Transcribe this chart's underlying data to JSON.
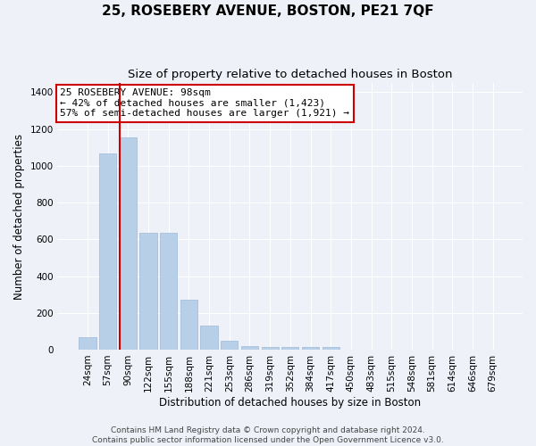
{
  "title": "25, ROSEBERY AVENUE, BOSTON, PE21 7QF",
  "subtitle": "Size of property relative to detached houses in Boston",
  "xlabel": "Distribution of detached houses by size in Boston",
  "ylabel": "Number of detached properties",
  "categories": [
    "24sqm",
    "57sqm",
    "90sqm",
    "122sqm",
    "155sqm",
    "188sqm",
    "221sqm",
    "253sqm",
    "286sqm",
    "319sqm",
    "352sqm",
    "384sqm",
    "417sqm",
    "450sqm",
    "483sqm",
    "515sqm",
    "548sqm",
    "581sqm",
    "614sqm",
    "646sqm",
    "679sqm"
  ],
  "values": [
    70,
    1065,
    1155,
    635,
    635,
    270,
    130,
    50,
    20,
    15,
    15,
    15,
    15,
    0,
    0,
    0,
    0,
    0,
    0,
    0,
    0
  ],
  "bar_color": "#b8cfe8",
  "bar_edge_color": "#9db8d8",
  "vline_color": "#cc0000",
  "vline_x_index": 2,
  "annotation_text": "25 ROSEBERY AVENUE: 98sqm\n← 42% of detached houses are smaller (1,423)\n57% of semi-detached houses are larger (1,921) →",
  "annotation_box_facecolor": "#ffffff",
  "annotation_box_edgecolor": "#cc0000",
  "ylim": [
    0,
    1450
  ],
  "yticks": [
    0,
    200,
    400,
    600,
    800,
    1000,
    1200,
    1400
  ],
  "footnote1": "Contains HM Land Registry data © Crown copyright and database right 2024.",
  "footnote2": "Contains public sector information licensed under the Open Government Licence v3.0.",
  "background_color": "#eef2f8",
  "grid_color": "#ffffff",
  "title_fontsize": 11,
  "subtitle_fontsize": 9.5,
  "axis_label_fontsize": 8.5,
  "tick_fontsize": 7.5,
  "annotation_fontsize": 8,
  "footnote_fontsize": 6.5
}
